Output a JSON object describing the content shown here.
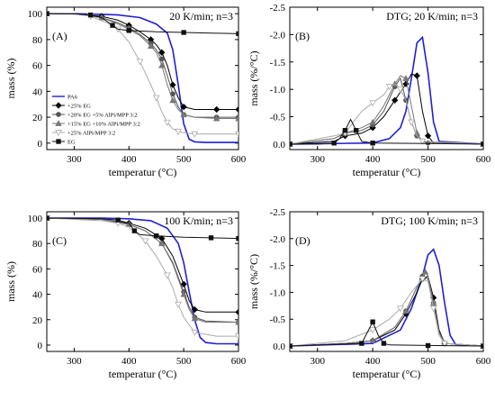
{
  "chart_data": [
    {
      "type": "line",
      "panel_label": "(A)",
      "title": "20 K/min; n=3",
      "xlabel": "temperatur (°C)",
      "ylabel": "mass (%)",
      "xlim": [
        250,
        600
      ],
      "ylim": [
        -5,
        105
      ],
      "x_ticks": [
        "300",
        "400",
        "500",
        "600"
      ],
      "y_ticks": [
        "0",
        "20",
        "40",
        "60",
        "80",
        "100"
      ],
      "legend_position": "center-left",
      "series": [
        {
          "name": "PA6",
          "color": "#1f1fd6",
          "marker": "none",
          "x": [
            250,
            300,
            350,
            380,
            420,
            450,
            470,
            480,
            490,
            500,
            510,
            520,
            540,
            600
          ],
          "y": [
            100,
            100,
            99.5,
            99,
            97,
            92,
            85,
            72,
            45,
            15,
            3,
            1,
            0.5,
            0.5
          ]
        },
        {
          "name": "+25% EG",
          "color": "#000000",
          "marker": "diamond-filled",
          "x": [
            250,
            300,
            350,
            380,
            400,
            420,
            440,
            450,
            460,
            470,
            480,
            490,
            500,
            520,
            560,
            600
          ],
          "y": [
            100,
            100,
            98,
            95,
            91,
            86,
            80,
            76,
            70,
            60,
            45,
            35,
            28,
            26,
            26,
            26
          ]
        },
        {
          "name": "+20% EG +5% AlPi/MPP 3:2",
          "color": "#555555",
          "marker": "circle-filled",
          "x": [
            250,
            300,
            350,
            380,
            400,
            420,
            440,
            450,
            460,
            470,
            480,
            490,
            500,
            520,
            560,
            600
          ],
          "y": [
            100,
            100,
            97,
            93,
            89,
            84,
            77,
            72,
            65,
            52,
            38,
            28,
            22,
            20,
            20,
            20
          ]
        },
        {
          "name": "+15% EG +10% AlPi/MPP 3:2",
          "color": "#777777",
          "marker": "triangle-up",
          "x": [
            250,
            300,
            350,
            380,
            400,
            420,
            440,
            450,
            460,
            470,
            480,
            490,
            500,
            520,
            560,
            600
          ],
          "y": [
            100,
            100,
            97,
            92,
            88,
            83,
            75,
            70,
            60,
            45,
            33,
            26,
            22,
            20,
            19,
            19
          ]
        },
        {
          "name": "+25% AlPi/MPP 3:2",
          "color": "#aaaaaa",
          "marker": "triangle-down",
          "x": [
            250,
            300,
            330,
            360,
            380,
            400,
            420,
            440,
            450,
            460,
            470,
            480,
            490,
            500,
            520,
            560,
            600
          ],
          "y": [
            100,
            100,
            98,
            93,
            88,
            78,
            63,
            45,
            35,
            24,
            16,
            11,
            9,
            8,
            7,
            7,
            7
          ]
        },
        {
          "name": "EG",
          "color": "#111111",
          "marker": "square-filled",
          "x": [
            250,
            300,
            330,
            350,
            370,
            380,
            400,
            450,
            500,
            550,
            600
          ],
          "y": [
            100,
            99.8,
            99,
            97,
            91,
            88,
            87,
            86,
            85.5,
            85,
            84.5
          ]
        }
      ]
    },
    {
      "type": "line",
      "panel_label": "(B)",
      "title": "DTG; 20 K/min; n=3",
      "xlabel": "temperatur (°C)",
      "ylabel": "mass (%/°C)",
      "xlim": [
        250,
        600
      ],
      "ylim": [
        0.1,
        -2.5
      ],
      "y_inverted": true,
      "x_ticks": [
        "300",
        "400",
        "500",
        "600"
      ],
      "y_ticks": [
        "0.0",
        "-0.5",
        "-1.0",
        "-1.5",
        "-2.0",
        "-2.5"
      ],
      "series": [
        {
          "name": "PA6",
          "color": "#1f1fd6",
          "marker": "none",
          "x": [
            250,
            400,
            430,
            450,
            460,
            470,
            480,
            490,
            500,
            510,
            520,
            600
          ],
          "y": [
            0,
            -0.02,
            -0.1,
            -0.3,
            -0.6,
            -1.2,
            -1.85,
            -1.95,
            -1.3,
            -0.4,
            -0.05,
            0
          ]
        },
        {
          "name": "+25% EG",
          "color": "#000000",
          "marker": "diamond-filled",
          "x": [
            250,
            330,
            350,
            380,
            400,
            420,
            440,
            450,
            460,
            470,
            480,
            490,
            500,
            510,
            600
          ],
          "y": [
            0,
            -0.05,
            -0.15,
            -0.2,
            -0.3,
            -0.5,
            -0.8,
            -0.95,
            -1.1,
            -1.28,
            -1.25,
            -0.6,
            -0.15,
            -0.02,
            0
          ]
        },
        {
          "name": "+20% EG +5% AlPi/MPP 3:2",
          "color": "#555555",
          "marker": "circle-filled",
          "x": [
            250,
            330,
            350,
            380,
            400,
            420,
            440,
            450,
            460,
            470,
            480,
            490,
            500,
            600
          ],
          "y": [
            0,
            -0.1,
            -0.2,
            -0.25,
            -0.35,
            -0.6,
            -1.05,
            -1.2,
            -0.8,
            -0.4,
            -0.15,
            -0.05,
            -0.02,
            0
          ]
        },
        {
          "name": "+15% EG +10% AlPi/MPP 3:2",
          "color": "#777777",
          "marker": "triangle-up",
          "x": [
            250,
            330,
            350,
            380,
            400,
            420,
            440,
            450,
            460,
            470,
            480,
            490,
            600
          ],
          "y": [
            0,
            -0.1,
            -0.2,
            -0.3,
            -0.4,
            -0.7,
            -1.1,
            -1.25,
            -1.2,
            -0.7,
            -0.2,
            -0.05,
            0
          ]
        },
        {
          "name": "+25% AlPi/MPP 3:2",
          "color": "#aaaaaa",
          "marker": "triangle-down",
          "x": [
            250,
            330,
            350,
            380,
            400,
            420,
            430,
            440,
            450,
            460,
            470,
            480,
            490,
            600
          ],
          "y": [
            0,
            -0.15,
            -0.2,
            -0.6,
            -0.75,
            -0.9,
            -1.05,
            -1.1,
            -1.0,
            -0.8,
            -0.4,
            -0.15,
            -0.05,
            0
          ]
        },
        {
          "name": "EG",
          "color": "#111111",
          "marker": "square-filled",
          "x": [
            250,
            300,
            330,
            340,
            350,
            360,
            370,
            380,
            400,
            500,
            600
          ],
          "y": [
            0,
            0,
            -0.02,
            -0.1,
            -0.25,
            -0.45,
            -0.25,
            -0.05,
            -0.02,
            -0.01,
            0
          ]
        }
      ]
    },
    {
      "type": "line",
      "panel_label": "(C)",
      "title": "100 K/min; n=3",
      "xlabel": "temperatur (°C)",
      "ylabel": "mass (%)",
      "xlim": [
        250,
        600
      ],
      "ylim": [
        -5,
        105
      ],
      "x_ticks": [
        "300",
        "400",
        "500",
        "600"
      ],
      "y_ticks": [
        "0",
        "20",
        "40",
        "60",
        "80",
        "100"
      ],
      "series": [
        {
          "name": "PA6",
          "color": "#1f1fd6",
          "marker": "none",
          "x": [
            250,
            350,
            400,
            440,
            470,
            490,
            500,
            510,
            520,
            530,
            540,
            560,
            600
          ],
          "y": [
            100,
            100,
            99.5,
            98,
            92,
            80,
            65,
            42,
            20,
            6,
            2,
            1,
            1
          ]
        },
        {
          "name": "+25% EG",
          "color": "#000000",
          "marker": "diamond-filled",
          "x": [
            250,
            350,
            400,
            430,
            460,
            480,
            500,
            510,
            520,
            540,
            600
          ],
          "y": [
            100,
            99,
            96,
            92,
            84,
            70,
            48,
            35,
            28,
            26,
            26
          ]
        },
        {
          "name": "+20% EG +5% AlPi/MPP 3:2",
          "color": "#555555",
          "marker": "circle-filled",
          "x": [
            250,
            350,
            400,
            430,
            460,
            480,
            500,
            510,
            520,
            540,
            600
          ],
          "y": [
            100,
            99,
            95,
            90,
            80,
            65,
            42,
            30,
            22,
            19,
            18
          ]
        },
        {
          "name": "+15% EG +10% AlPi/MPP 3:2",
          "color": "#777777",
          "marker": "triangle-up",
          "x": [
            250,
            350,
            400,
            430,
            460,
            480,
            500,
            510,
            520,
            540,
            600
          ],
          "y": [
            100,
            99,
            95,
            90,
            80,
            64,
            40,
            28,
            21,
            18,
            18
          ]
        },
        {
          "name": "+25% AlPi/MPP 3:2",
          "color": "#aaaaaa",
          "marker": "triangle-down",
          "x": [
            250,
            350,
            380,
            400,
            430,
            450,
            470,
            480,
            490,
            500,
            520,
            560,
            600
          ],
          "y": [
            100,
            98,
            96,
            93,
            82,
            70,
            55,
            45,
            32,
            22,
            10,
            7,
            7
          ]
        },
        {
          "name": "EG",
          "color": "#111111",
          "marker": "square-filled",
          "x": [
            250,
            350,
            380,
            400,
            410,
            420,
            450,
            500,
            550,
            600
          ],
          "y": [
            100,
            99.5,
            98.5,
            96,
            90,
            87,
            86,
            85,
            84.5,
            84
          ]
        }
      ]
    },
    {
      "type": "line",
      "panel_label": "(D)",
      "title": "DTG; 100 K/min; n=3",
      "xlabel": "temperatur (°C)",
      "ylabel": "mass (%/°C)",
      "xlim": [
        250,
        600
      ],
      "ylim": [
        0.1,
        -2.5
      ],
      "y_inverted": true,
      "x_ticks": [
        "300",
        "400",
        "500",
        "600"
      ],
      "y_ticks": [
        "0.0",
        "-0.5",
        "-1.0",
        "-1.5",
        "-2.0",
        "-2.5"
      ],
      "series": [
        {
          "name": "PA6",
          "color": "#1f1fd6",
          "marker": "none",
          "x": [
            250,
            400,
            450,
            470,
            490,
            500,
            510,
            520,
            530,
            540,
            550,
            600
          ],
          "y": [
            0,
            -0.05,
            -0.3,
            -0.7,
            -1.3,
            -1.7,
            -1.8,
            -1.5,
            -0.8,
            -0.2,
            -0.03,
            0
          ]
        },
        {
          "name": "+25% EG",
          "color": "#000000",
          "marker": "diamond-filled",
          "x": [
            250,
            350,
            400,
            440,
            460,
            480,
            490,
            500,
            510,
            520,
            530,
            600
          ],
          "y": [
            0,
            -0.05,
            -0.1,
            -0.3,
            -0.6,
            -1.0,
            -1.25,
            -1.3,
            -0.9,
            -0.3,
            -0.05,
            0
          ]
        },
        {
          "name": "+20% EG +5% AlPi/MPP 3:2",
          "color": "#555555",
          "marker": "circle-filled",
          "x": [
            250,
            350,
            400,
            440,
            460,
            480,
            490,
            500,
            510,
            520,
            530,
            600
          ],
          "y": [
            0,
            -0.05,
            -0.1,
            -0.35,
            -0.65,
            -1.1,
            -1.3,
            -1.25,
            -0.8,
            -0.25,
            -0.05,
            0
          ]
        },
        {
          "name": "+15% EG +10% AlPi/MPP 3:2",
          "color": "#777777",
          "marker": "triangle-up",
          "x": [
            250,
            350,
            400,
            440,
            460,
            480,
            495,
            500,
            510,
            520,
            530,
            600
          ],
          "y": [
            0,
            -0.05,
            -0.1,
            -0.35,
            -0.65,
            -1.1,
            -1.38,
            -1.3,
            -0.8,
            -0.25,
            -0.05,
            0
          ]
        },
        {
          "name": "+25% AlPi/MPP 3:2",
          "color": "#aaaaaa",
          "marker": "triangle-down",
          "x": [
            250,
            350,
            400,
            430,
            450,
            470,
            490,
            500,
            510,
            520,
            530,
            600
          ],
          "y": [
            0,
            -0.1,
            -0.3,
            -0.5,
            -0.7,
            -1.0,
            -1.25,
            -1.2,
            -0.7,
            -0.2,
            -0.05,
            0
          ]
        },
        {
          "name": "EG",
          "color": "#111111",
          "marker": "square-filled",
          "x": [
            250,
            300,
            380,
            390,
            400,
            410,
            420,
            430,
            500,
            600
          ],
          "y": [
            0,
            -0.02,
            -0.05,
            -0.25,
            -0.45,
            -0.2,
            -0.05,
            -0.02,
            -0.01,
            0
          ]
        }
      ]
    }
  ]
}
